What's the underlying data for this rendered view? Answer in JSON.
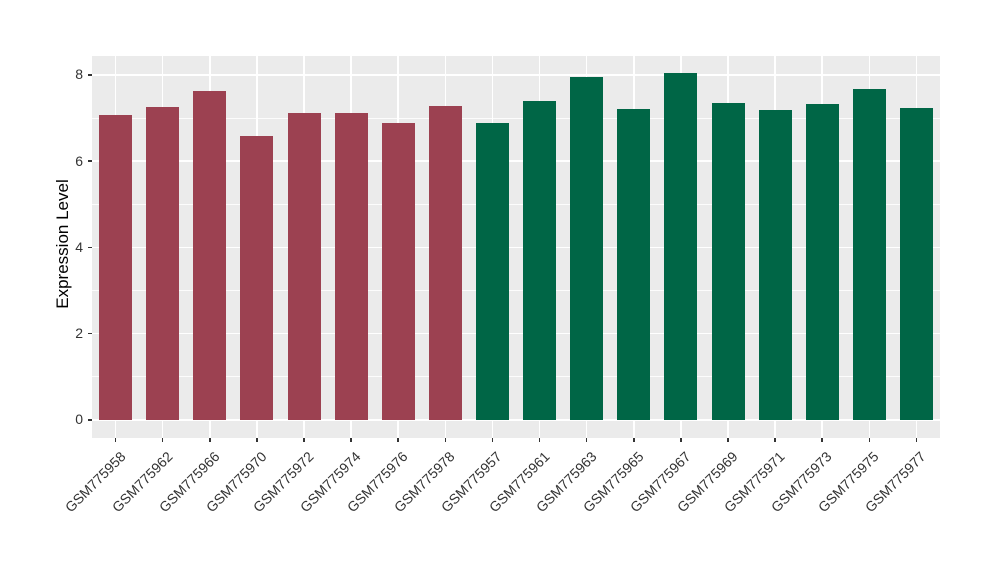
{
  "chart_data": {
    "type": "bar",
    "title": "",
    "xlabel": "",
    "ylabel": "Expression Level",
    "categories": [
      "GSM775958",
      "GSM775962",
      "GSM775966",
      "GSM775970",
      "GSM775972",
      "GSM775974",
      "GSM775976",
      "GSM775978",
      "GSM775957",
      "GSM775961",
      "GSM775963",
      "GSM775965",
      "GSM775967",
      "GSM775969",
      "GSM775971",
      "GSM775973",
      "GSM775975",
      "GSM775977"
    ],
    "values": [
      7.08,
      7.26,
      7.63,
      6.59,
      7.12,
      7.12,
      6.89,
      7.29,
      6.89,
      7.4,
      7.96,
      7.22,
      8.05,
      7.35,
      7.19,
      7.33,
      7.68,
      7.24
    ],
    "colors": [
      "#9C4151",
      "#9C4151",
      "#9C4151",
      "#9C4151",
      "#9C4151",
      "#9C4151",
      "#9C4151",
      "#9C4151",
      "#006646",
      "#006646",
      "#006646",
      "#006646",
      "#006646",
      "#006646",
      "#006646",
      "#006646",
      "#006646",
      "#006646"
    ],
    "bar_groups": [
      {
        "name": "left-group",
        "color": "#9C4151",
        "count": 8
      },
      {
        "name": "right-group",
        "color": "#006646",
        "count": 10
      }
    ],
    "yticks": [
      0,
      2,
      4,
      6,
      8
    ],
    "yticks_minor": [
      1,
      3,
      5,
      7
    ],
    "ylim": [
      -0.42,
      8.44
    ],
    "grid": "on",
    "legend": "none",
    "panel_bg": "#EBEBEB",
    "grid_color": "#FFFFFF",
    "tick_color": "#333333"
  }
}
